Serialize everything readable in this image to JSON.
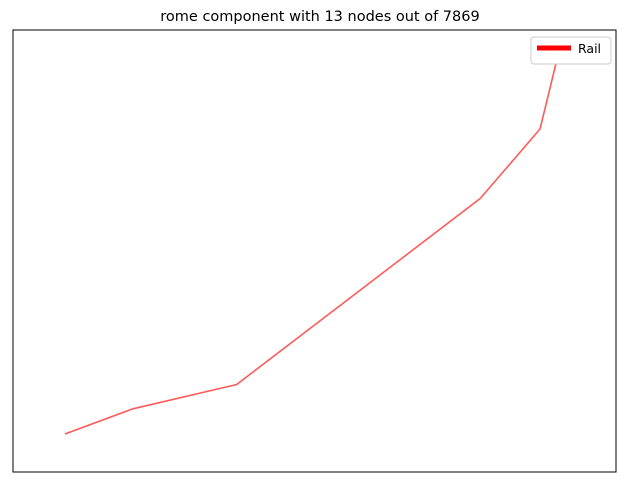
{
  "chart_data": {
    "type": "line",
    "title": "rome component with 13 nodes out of 7869",
    "xlabel": "",
    "ylabel": "",
    "show_ticks": false,
    "grid": false,
    "legend_position": "top-right",
    "x_range": [
      0,
      1
    ],
    "y_range": [
      0,
      1
    ],
    "series": [
      {
        "name": "Rail",
        "color": "#ff0000",
        "legend_color": "#ff0000",
        "line_opacity": 0.65,
        "points": [
          {
            "x": 0.086,
            "y": 0.086
          },
          {
            "x": 0.199,
            "y": 0.143
          },
          {
            "x": 0.371,
            "y": 0.198
          },
          {
            "x": 0.775,
            "y": 0.619
          },
          {
            "x": 0.874,
            "y": 0.776
          },
          {
            "x": 0.904,
            "y": 0.944
          }
        ]
      }
    ]
  }
}
